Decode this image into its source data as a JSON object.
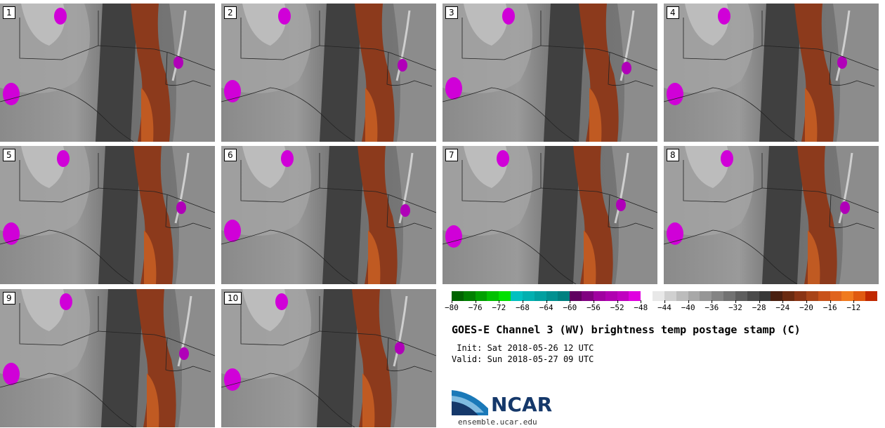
{
  "panels": [
    {
      "label": "1"
    },
    {
      "label": "2"
    },
    {
      "label": "3"
    },
    {
      "label": "4"
    },
    {
      "label": "5"
    },
    {
      "label": "6"
    },
    {
      "label": "7"
    },
    {
      "label": "8"
    },
    {
      "label": "9"
    },
    {
      "label": "10"
    }
  ],
  "colorbar": {
    "colors": [
      "#006400",
      "#008000",
      "#00a000",
      "#00c000",
      "#00e000",
      "#00c0c0",
      "#00b0b0",
      "#00a0a0",
      "#009090",
      "#008080",
      "#600060",
      "#800080",
      "#a000a0",
      "#b000b0",
      "#c000c0",
      "#e000e0",
      "#ffffff",
      "#e8e8e8",
      "#d0d0d0",
      "#bcbcbc",
      "#a8a8a8",
      "#969696",
      "#848484",
      "#727272",
      "#5e5e5e",
      "#4a4a4a",
      "#383838",
      "#4a2010",
      "#6a2a10",
      "#8a3414",
      "#a84418",
      "#c8521a",
      "#e0641e",
      "#f07a1e",
      "#e05a10",
      "#c02800"
    ],
    "ticks": [
      "−80",
      "−76",
      "−72",
      "−68",
      "−64",
      "−60",
      "−56",
      "−52",
      "−48",
      "−44",
      "−40",
      "−36",
      "−32",
      "−28",
      "−24",
      "−20",
      "−16",
      "−12"
    ]
  },
  "title": "GOES-E Channel 3 (WV) brightness temp postage stamp (C)",
  "init": " Init: Sat 2018-05-26 12 UTC",
  "valid": "Valid: Sun 2018-05-27 09 UTC",
  "logo": {
    "text": "NCAR",
    "url": "ensemble.ucar.edu"
  }
}
